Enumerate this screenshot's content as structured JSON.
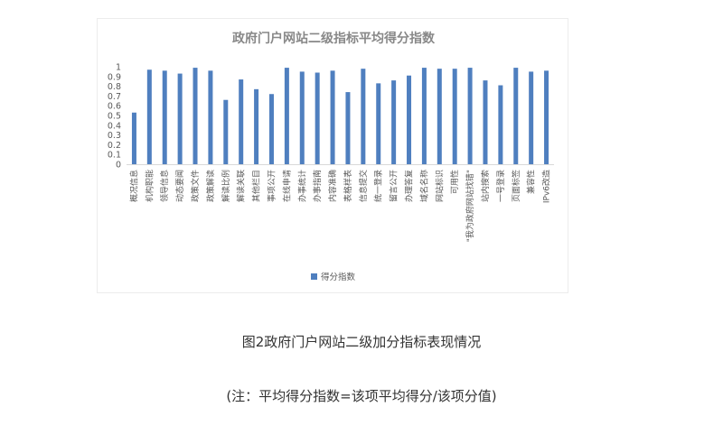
{
  "chart_data": {
    "type": "bar",
    "title": "政府门户网站二级指标平均得分指数",
    "categories": [
      "概况信息",
      "机构职能",
      "领导信息",
      "动态要闻",
      "政策文件",
      "政策解读",
      "解读比例",
      "解读关联",
      "其他栏目",
      "事项公开",
      "在线申请",
      "办事统计",
      "办事指南",
      "内容准确",
      "表格样表",
      "信息提交",
      "统一登录",
      "留言公开",
      "办理答复",
      "域名名称",
      "网站标识",
      "可用性",
      "\"我为政府网站找错\"",
      "站内搜索",
      "一号登录",
      "页面标签",
      "兼容性",
      "IPv6改造"
    ],
    "series": [
      {
        "name": "得分指数",
        "values": [
          0.53,
          0.97,
          0.96,
          0.93,
          0.99,
          0.96,
          0.66,
          0.87,
          0.77,
          0.72,
          0.99,
          0.95,
          0.94,
          0.96,
          0.74,
          0.98,
          0.83,
          0.86,
          0.91,
          0.99,
          0.98,
          0.98,
          0.99,
          0.86,
          0.81,
          0.99,
          0.95,
          0.96
        ]
      }
    ],
    "ylim": [
      0,
      1
    ],
    "yticks": [
      "0",
      "0.1",
      "0.2",
      "0.3",
      "0.4",
      "0.5",
      "0.6",
      "0.7",
      "0.8",
      "0.9",
      "1"
    ],
    "grid": false,
    "legend": "bottom",
    "bar_color": "#4f7fbf"
  },
  "caption": "图2政府门户网站二级加分指标表现情况",
  "note": "(注：平均得分指数=该项平均得分/该项分值)"
}
